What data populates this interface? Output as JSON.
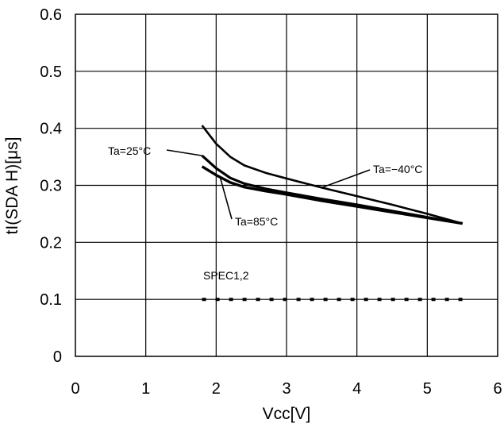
{
  "chart_data": {
    "type": "line",
    "xlabel": "Vcc[V]",
    "ylabel": "tI(SDA H)[μs]",
    "xlim": [
      0,
      6
    ],
    "ylim": [
      0,
      0.6
    ],
    "x_ticks": [
      "0",
      "1",
      "2",
      "3",
      "4",
      "5",
      "6"
    ],
    "y_ticks": [
      "0",
      "0.1",
      "0.2",
      "0.3",
      "0.4",
      "0.5",
      "0.6"
    ],
    "grid": true,
    "series": [
      {
        "name": "Ta=-40°C",
        "x": [
          1.8,
          2.0,
          2.2,
          2.4,
          2.7,
          3.0,
          3.5,
          4.0,
          4.5,
          5.0,
          5.5
        ],
        "y": [
          0.405,
          0.373,
          0.35,
          0.335,
          0.322,
          0.312,
          0.296,
          0.281,
          0.266,
          0.25,
          0.233
        ]
      },
      {
        "name": "Ta=25°C",
        "x": [
          1.8,
          2.0,
          2.2,
          2.4,
          2.7,
          3.0,
          3.5,
          4.0,
          4.5,
          5.0,
          5.5
        ],
        "y": [
          0.352,
          0.33,
          0.313,
          0.303,
          0.294,
          0.287,
          0.276,
          0.266,
          0.255,
          0.244,
          0.233
        ]
      },
      {
        "name": "Ta=85°C",
        "x": [
          1.8,
          2.0,
          2.2,
          2.4,
          2.7,
          3.0,
          3.5,
          4.0,
          4.5,
          5.0,
          5.5
        ],
        "y": [
          0.333,
          0.318,
          0.305,
          0.297,
          0.29,
          0.284,
          0.273,
          0.263,
          0.253,
          0.243,
          0.233
        ]
      },
      {
        "name": "SPEC1,2",
        "style": "dotted",
        "x": [
          1.8,
          5.5
        ],
        "y": [
          0.1,
          0.1
        ]
      }
    ],
    "annotations": [
      {
        "text": "Ta=25°C",
        "series": "Ta=25°C"
      },
      {
        "text": "Ta=−40°C",
        "series": "Ta=-40°C"
      },
      {
        "text": "Ta=85°C",
        "series": "Ta=85°C"
      },
      {
        "text": "SPEC1,2",
        "series": "SPEC1,2"
      }
    ]
  }
}
